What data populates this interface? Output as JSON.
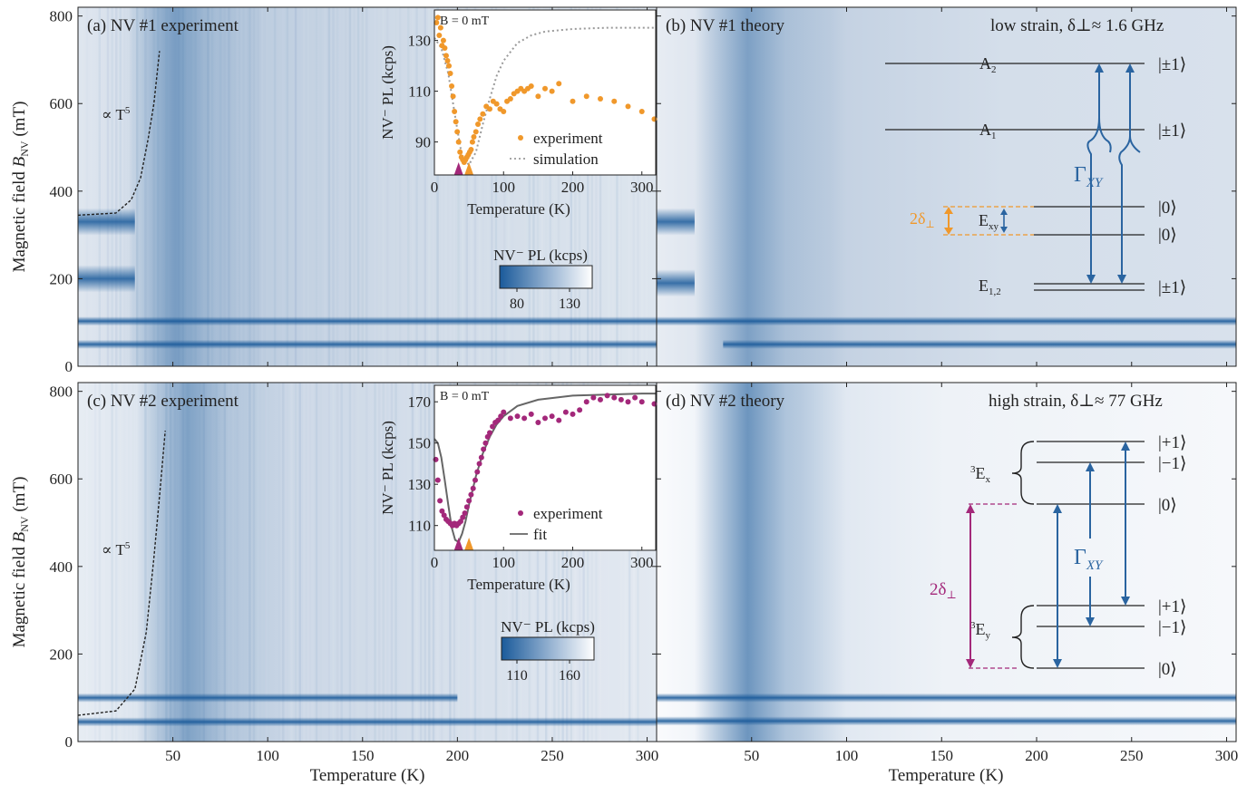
{
  "colors": {
    "blue": "#1a5a9a",
    "light": "#eef3f8",
    "orange": "#f0982b",
    "magenta": "#a3287a",
    "level_blue": "#2a64a0",
    "sim_gray": "#9a9a9a",
    "fit_gray": "#666666"
  },
  "axes": {
    "xlabel": "Temperature (K)",
    "ylabel_main": "Magnetic field ",
    "ylabel_sym": "B",
    "ylabel_sub": "NV",
    "ylabel_unit": " (mT)",
    "xlim": [
      0,
      305
    ],
    "ylim": [
      0,
      820
    ],
    "xticks": [
      50,
      100,
      150,
      200,
      250,
      300
    ],
    "yticks": [
      0,
      200,
      400,
      600,
      800
    ]
  },
  "panels": {
    "a": {
      "label": "(a) NV #1 experiment",
      "annotation": "∝ T",
      "annotation_sup": "5"
    },
    "b": {
      "label": "(b) NV #1 theory",
      "strain_note": "low strain, δ⊥≈ 1.6 GHz"
    },
    "c": {
      "label": "(c) NV #2 experiment",
      "annotation": "∝ T",
      "annotation_sup": "5"
    },
    "d": {
      "label": "(d) NV #2 theory",
      "strain_note": "high strain, δ⊥≈ 77 GHz"
    }
  },
  "colorbar_top": {
    "title": "NV⁻ PL (kcps)",
    "ticks": [
      "80",
      "130"
    ]
  },
  "colorbar_bottom": {
    "title": "NV⁻ PL (kcps)",
    "ticks": [
      "110",
      "160"
    ]
  },
  "inset_top": {
    "title": "B = 0 mT",
    "ylabel": "NV⁻ PL (kcps)",
    "xlabel": "Temperature (K)",
    "legend_exp": "experiment",
    "legend_sim": "simulation",
    "xticks": [
      "0",
      "100",
      "200",
      "300"
    ],
    "yticks": [
      "90",
      "110",
      "130"
    ]
  },
  "inset_bottom": {
    "title": "B = 0 mT",
    "ylabel": "NV⁻ PL (kcps)",
    "xlabel": "Temperature (K)",
    "legend_exp": "experiment",
    "legend_fit": "fit",
    "xticks": [
      "0",
      "100",
      "200",
      "300"
    ],
    "yticks": [
      "110",
      "130",
      "150",
      "170"
    ]
  },
  "diagram_b": {
    "A2": "A",
    "A2_sub": "2",
    "A1": "A",
    "A1_sub": "1",
    "Exy": "E",
    "Exy_sub": "xy",
    "E12": "E",
    "E12_sub": "1,2",
    "split": "2δ",
    "split_sub": "⊥",
    "gamma": "Γ",
    "gamma_sub": "XY",
    "states": [
      "|±1⟩",
      "|±1⟩",
      "|0⟩",
      "|0⟩",
      "|±1⟩"
    ]
  },
  "diagram_d": {
    "Ex": "E",
    "Ex_pre": "3",
    "Ex_sub": "x",
    "Ey": "E",
    "Ey_pre": "3",
    "Ey_sub": "y",
    "split": "2δ",
    "split_sub": "⊥",
    "gamma": "Γ",
    "gamma_sub": "XY",
    "states": [
      "|+1⟩",
      "|−1⟩",
      "|0⟩",
      "|+1⟩",
      "|−1⟩",
      "|0⟩"
    ]
  },
  "chart_data": [
    {
      "type": "heatmap",
      "title": "(a) NV #1 experiment",
      "xlabel": "Temperature (K)",
      "ylabel": "Magnetic field B_NV (mT)",
      "xlim": [
        0,
        305
      ],
      "ylim": [
        0,
        820
      ],
      "colorbar": {
        "label": "NV⁻ PL (kcps)",
        "range": [
          80,
          130
        ]
      },
      "features": [
        {
          "name": "dark low-T band",
          "y": 330,
          "x_range": [
            0,
            30
          ]
        },
        {
          "name": "dark low-T band",
          "y": 200,
          "x_range": [
            0,
            30
          ]
        },
        {
          "name": "dark horizontal line",
          "y": 103,
          "x_range": [
            0,
            305
          ]
        },
        {
          "name": "dark horizontal line",
          "y": 50,
          "x_range": [
            0,
            305
          ]
        },
        {
          "name": "dark vertical band",
          "x": 50,
          "x_range": [
            25,
            100
          ]
        }
      ],
      "overlay": {
        "name": "∝ T^5",
        "x": [
          0,
          20,
          28,
          33,
          37,
          40,
          43
        ],
        "y": [
          345,
          350,
          380,
          430,
          520,
          600,
          720
        ]
      }
    },
    {
      "type": "heatmap",
      "title": "(b) NV #1 theory",
      "xlabel": "Temperature (K)",
      "xlim": [
        0,
        305
      ],
      "ylim": [
        0,
        820
      ],
      "features": [
        {
          "name": "dark low-T band",
          "y": 330,
          "x_range": [
            0,
            20
          ]
        },
        {
          "name": "dark low-T band",
          "y": 190,
          "x_range": [
            0,
            20
          ]
        },
        {
          "name": "dark horizontal line",
          "y": 103,
          "x_range": [
            0,
            305
          ]
        },
        {
          "name": "dark horizontal line",
          "y": 50,
          "x_range": [
            35,
            305
          ]
        },
        {
          "name": "dark vertical band",
          "x": 50,
          "x_range": [
            20,
            100
          ]
        }
      ]
    },
    {
      "type": "scatter",
      "title": "B = 0 mT",
      "xlabel": "Temperature (K)",
      "ylabel": "NV⁻ PL (kcps)",
      "xlim": [
        0,
        320
      ],
      "ylim": [
        77,
        142
      ],
      "series": [
        {
          "name": "experiment",
          "x": [
            3,
            5,
            7,
            9,
            11,
            13,
            15,
            17,
            19,
            21,
            23,
            25,
            27,
            29,
            31,
            33,
            35,
            37,
            39,
            41,
            43,
            45,
            47,
            49,
            51,
            53,
            55,
            57,
            60,
            63,
            66,
            70,
            75,
            80,
            85,
            90,
            95,
            100,
            105,
            110,
            115,
            120,
            125,
            130,
            135,
            140,
            150,
            160,
            170,
            180,
            200,
            220,
            240,
            260,
            280,
            300,
            318
          ],
          "y": [
            137,
            139,
            132,
            135,
            128,
            130,
            127,
            124,
            122,
            120,
            117,
            112,
            108,
            102,
            98,
            94,
            90,
            86,
            84,
            83,
            82,
            83,
            84,
            85,
            86,
            87,
            90,
            92,
            94,
            97,
            99,
            101,
            104,
            103,
            106,
            105,
            103,
            102,
            106,
            107,
            109,
            110,
            111,
            110,
            111,
            112,
            108,
            111,
            110,
            113,
            106,
            108,
            107,
            106,
            104,
            102,
            99
          ]
        },
        {
          "name": "simulation",
          "x": [
            0,
            10,
            20,
            30,
            40,
            50,
            60,
            70,
            80,
            90,
            100,
            120,
            140,
            160,
            200,
            250,
            300,
            320
          ],
          "y": [
            131,
            127,
            117,
            100,
            84,
            81,
            86,
            97,
            107,
            116,
            122,
            129,
            132,
            133.5,
            134.5,
            135,
            135,
            135
          ]
        }
      ],
      "markers": [
        {
          "x": 35,
          "color": "magenta"
        },
        {
          "x": 50,
          "color": "orange"
        }
      ]
    },
    {
      "type": "heatmap",
      "title": "(c) NV #2 experiment",
      "xlabel": "Temperature (K)",
      "ylabel": "Magnetic field B_NV (mT)",
      "xlim": [
        0,
        305
      ],
      "ylim": [
        0,
        820
      ],
      "colorbar": {
        "label": "NV⁻ PL (kcps)",
        "range": [
          110,
          160
        ]
      },
      "features": [
        {
          "name": "dark horizontal line",
          "y": 100,
          "x_range": [
            0,
            200
          ]
        },
        {
          "name": "dark horizontal line",
          "y": 45,
          "x_range": [
            0,
            305
          ]
        },
        {
          "name": "dark vertical band",
          "x": 60,
          "x_range": [
            30,
            110
          ]
        }
      ],
      "overlay": {
        "name": "∝ T^5",
        "x": [
          0,
          20,
          30,
          36,
          40,
          43,
          46
        ],
        "y": [
          60,
          70,
          120,
          250,
          420,
          560,
          710
        ]
      }
    },
    {
      "type": "heatmap",
      "title": "(d) NV #2 theory",
      "xlabel": "Temperature (K)",
      "xlim": [
        0,
        305
      ],
      "ylim": [
        0,
        820
      ],
      "features": [
        {
          "name": "dark horizontal line",
          "y": 100,
          "x_range": [
            0,
            305
          ]
        },
        {
          "name": "dark horizontal line",
          "y": 47,
          "x_range": [
            0,
            305
          ]
        },
        {
          "name": "dark vertical band",
          "x": 50,
          "x_range": [
            20,
            100
          ]
        }
      ]
    },
    {
      "type": "scatter",
      "title": "B = 0 mT",
      "xlabel": "Temperature (K)",
      "ylabel": "NV⁻ PL (kcps)",
      "xlim": [
        0,
        320
      ],
      "ylim": [
        98,
        178
      ],
      "series": [
        {
          "name": "experiment",
          "x": [
            2,
            5,
            8,
            11,
            14,
            17,
            20,
            23,
            26,
            29,
            32,
            35,
            38,
            41,
            44,
            47,
            50,
            53,
            56,
            59,
            62,
            65,
            68,
            71,
            74,
            77,
            80,
            84,
            88,
            92,
            96,
            100,
            110,
            120,
            130,
            140,
            150,
            160,
            170,
            180,
            190,
            200,
            210,
            220,
            230,
            240,
            250,
            260,
            270,
            280,
            290,
            300,
            318
          ],
          "y": [
            142,
            132,
            122,
            117,
            115,
            113,
            112,
            111,
            110,
            111,
            110,
            111,
            112,
            114,
            116,
            119,
            122,
            125,
            128,
            132,
            136,
            140,
            143,
            147,
            150,
            153,
            155,
            158,
            160,
            161,
            163,
            165,
            162,
            163,
            162,
            164,
            160,
            162,
            163,
            161,
            165,
            164,
            166,
            170,
            172,
            171,
            173,
            172,
            171,
            170,
            172,
            170,
            169
          ]
        },
        {
          "name": "fit",
          "x": [
            0,
            5,
            10,
            15,
            20,
            25,
            30,
            35,
            40,
            45,
            50,
            60,
            70,
            80,
            90,
            100,
            120,
            150,
            200,
            250,
            300,
            320
          ],
          "y": [
            152,
            150,
            143,
            132,
            120,
            109,
            103,
            102,
            106,
            112,
            120,
            134,
            145,
            153,
            159,
            163,
            168,
            171,
            173,
            173.5,
            174,
            174
          ]
        }
      ],
      "markers": [
        {
          "x": 35,
          "color": "magenta"
        },
        {
          "x": 50,
          "color": "orange"
        }
      ]
    }
  ]
}
